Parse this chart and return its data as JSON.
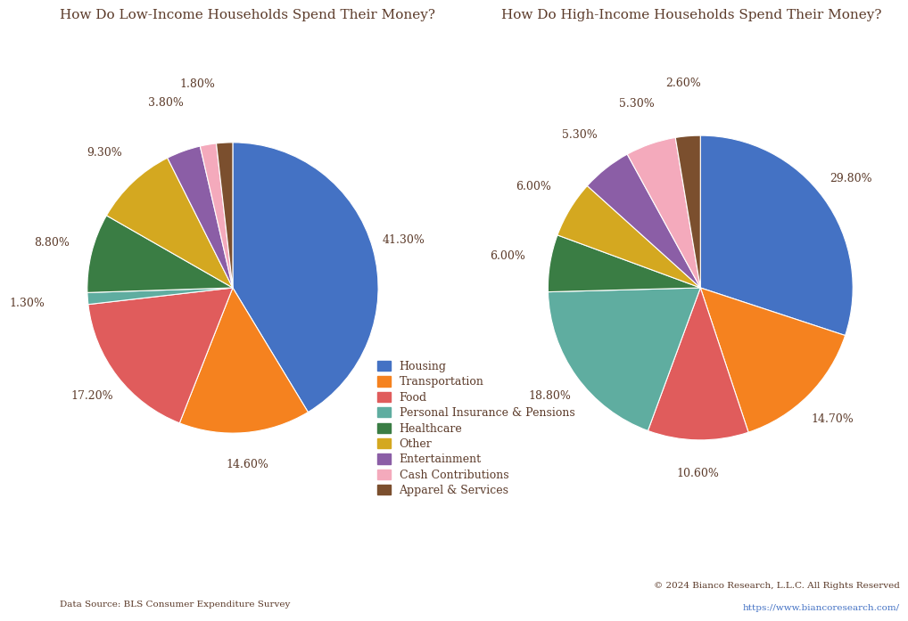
{
  "title_low": "How Do Low-Income Households Spend Their Money?",
  "title_high": "How Do High-Income Households Spend Their Money?",
  "categories": [
    "Housing",
    "Transportation",
    "Food",
    "Personal Insurance & Pensions",
    "Healthcare",
    "Other",
    "Entertainment",
    "Cash Contributions",
    "Apparel & Services"
  ],
  "colors": [
    "#4472C4",
    "#F5821F",
    "#E05C5C",
    "#5FADA0",
    "#3A7D44",
    "#D4A820",
    "#8B5EA6",
    "#F4AABC",
    "#7B4F2E"
  ],
  "low_income": [
    41.3,
    14.6,
    17.2,
    1.3,
    8.8,
    9.3,
    3.8,
    1.8,
    1.8
  ],
  "high_income": [
    29.8,
    14.7,
    10.6,
    18.8,
    6.0,
    6.0,
    5.3,
    5.3,
    2.6
  ],
  "low_labels": [
    "41.30%",
    "14.60%",
    "17.20%",
    "1.30%",
    "8.80%",
    "9.30%",
    "3.80%",
    "1.80%",
    ""
  ],
  "high_labels": [
    "29.80%",
    "14.70%",
    "10.60%",
    "18.80%",
    "6.00%",
    "6.00%",
    "5.30%",
    "5.30%",
    "2.60%"
  ],
  "title_color": "#5B3A29",
  "label_color": "#5B3A29",
  "legend_color": "#5B3A29",
  "source_text": "Data Source: BLS Consumer Expenditure Survey",
  "copyright_text": "© 2024 Bianco Research, L.L.C. All Rights Reserved",
  "url_text": "https://www.biancoresearch.com/",
  "url_color": "#4472C4",
  "background_color": "#FFFFFF"
}
